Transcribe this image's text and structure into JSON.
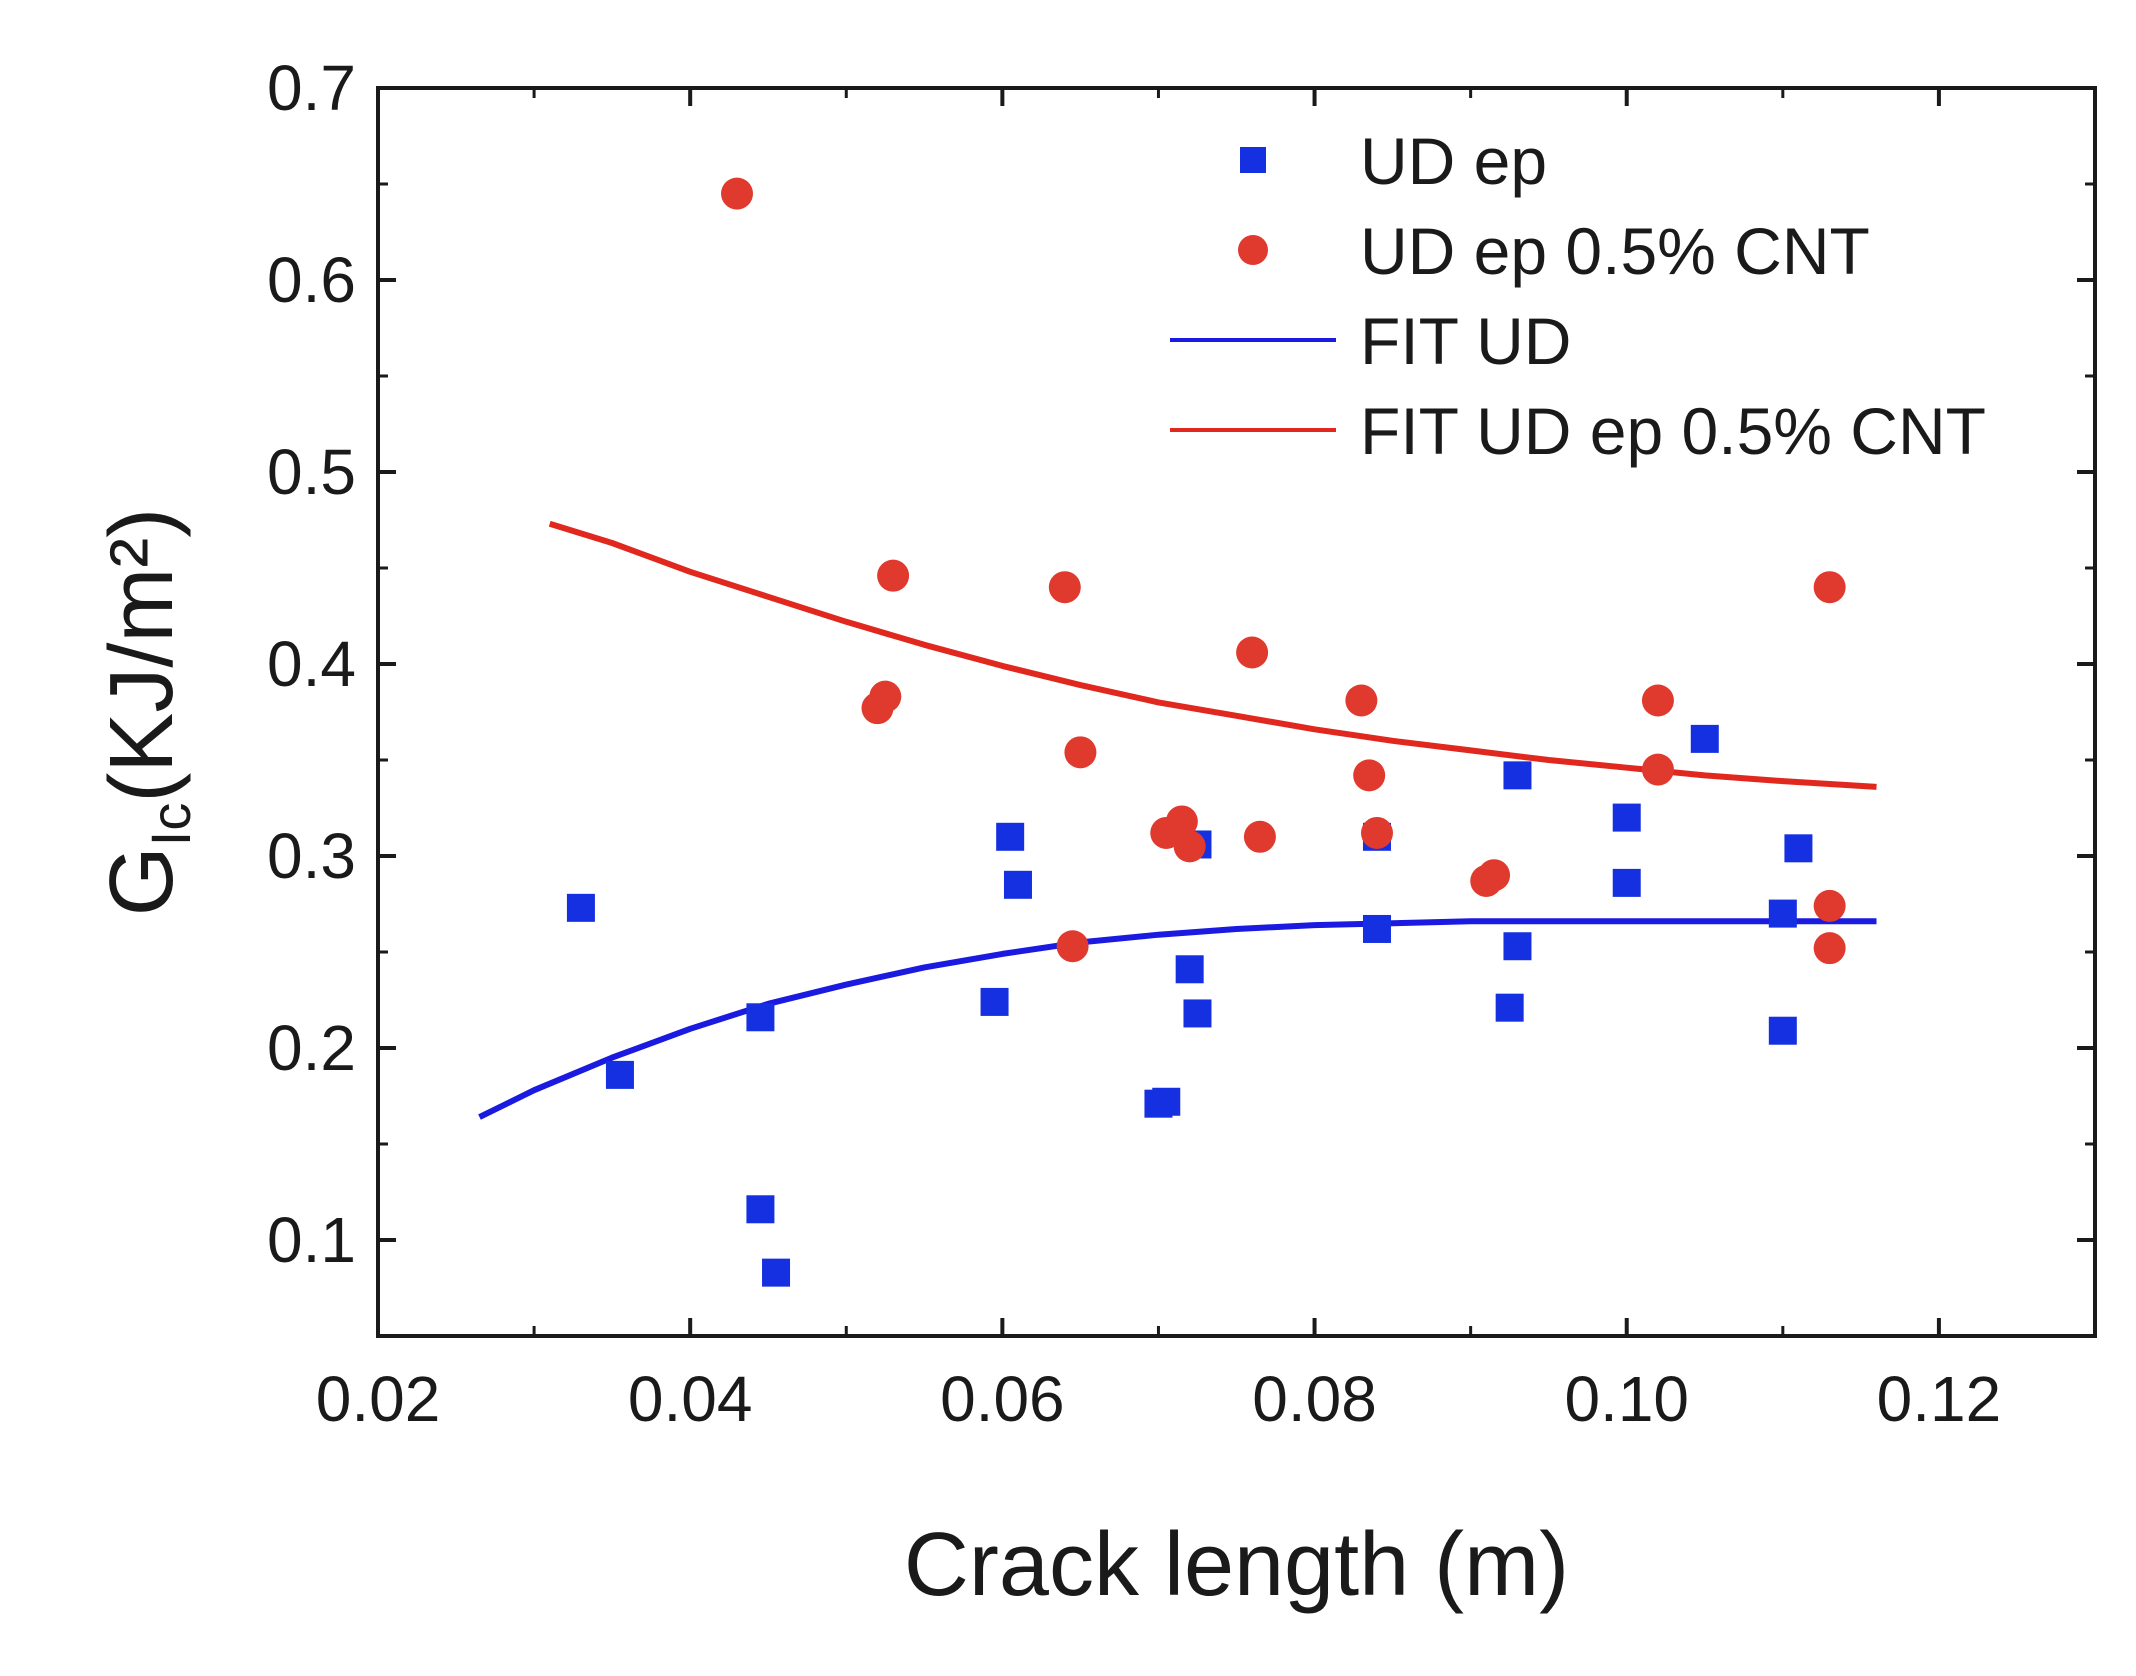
{
  "chart_data": {
    "type": "scatter",
    "title": "",
    "xlabel": "Crack length (m)",
    "ylabel": {
      "main": "G",
      "sub": "Ic",
      "rest": "(KJ/m²)"
    },
    "xlim": [
      0.02,
      0.13
    ],
    "ylim": [
      0.05,
      0.7
    ],
    "x_ticks": [
      0.02,
      0.04,
      0.06,
      0.08,
      0.1,
      0.12
    ],
    "x_tick_labels": [
      "0.02",
      "0.04",
      "0.06",
      "0.08",
      "0.10",
      "0.12"
    ],
    "y_ticks": [
      0.1,
      0.2,
      0.3,
      0.4,
      0.5,
      0.6,
      0.7
    ],
    "y_tick_labels": [
      "0.1",
      "0.2",
      "0.3",
      "0.4",
      "0.5",
      "0.6",
      "0.7"
    ],
    "legend_position": "top-right",
    "series": [
      {
        "name": "UD ep",
        "kind": "scatter",
        "marker": "square",
        "color": "#1530e0",
        "points": [
          [
            0.033,
            0.273
          ],
          [
            0.0355,
            0.186
          ],
          [
            0.0445,
            0.216
          ],
          [
            0.0445,
            0.116
          ],
          [
            0.0455,
            0.083
          ],
          [
            0.0595,
            0.224
          ],
          [
            0.0605,
            0.31
          ],
          [
            0.061,
            0.285
          ],
          [
            0.07,
            0.171
          ],
          [
            0.0705,
            0.172
          ],
          [
            0.072,
            0.241
          ],
          [
            0.0725,
            0.218
          ],
          [
            0.0725,
            0.306
          ],
          [
            0.084,
            0.262
          ],
          [
            0.084,
            0.31
          ],
          [
            0.0925,
            0.221
          ],
          [
            0.093,
            0.253
          ],
          [
            0.093,
            0.342
          ],
          [
            0.1,
            0.286
          ],
          [
            0.1,
            0.32
          ],
          [
            0.105,
            0.361
          ],
          [
            0.11,
            0.209
          ],
          [
            0.11,
            0.27
          ],
          [
            0.111,
            0.304
          ]
        ]
      },
      {
        "name": "UD ep 0.5% CNT",
        "kind": "scatter",
        "marker": "circle",
        "color": "#e03a2e",
        "points": [
          [
            0.043,
            0.645
          ],
          [
            0.052,
            0.377
          ],
          [
            0.0525,
            0.383
          ],
          [
            0.053,
            0.446
          ],
          [
            0.064,
            0.44
          ],
          [
            0.0645,
            0.253
          ],
          [
            0.065,
            0.354
          ],
          [
            0.0705,
            0.312
          ],
          [
            0.0715,
            0.318
          ],
          [
            0.072,
            0.305
          ],
          [
            0.076,
            0.406
          ],
          [
            0.0765,
            0.31
          ],
          [
            0.083,
            0.381
          ],
          [
            0.0835,
            0.342
          ],
          [
            0.084,
            0.312
          ],
          [
            0.091,
            0.287
          ],
          [
            0.0915,
            0.29
          ],
          [
            0.102,
            0.381
          ],
          [
            0.102,
            0.345
          ],
          [
            0.113,
            0.44
          ],
          [
            0.113,
            0.274
          ],
          [
            0.113,
            0.252
          ]
        ]
      },
      {
        "name": "FIT UD",
        "kind": "line",
        "color": "#1a1ae0",
        "points": [
          [
            0.0265,
            0.164
          ],
          [
            0.03,
            0.178
          ],
          [
            0.035,
            0.195
          ],
          [
            0.04,
            0.21
          ],
          [
            0.045,
            0.223
          ],
          [
            0.05,
            0.233
          ],
          [
            0.055,
            0.242
          ],
          [
            0.06,
            0.249
          ],
          [
            0.065,
            0.255
          ],
          [
            0.07,
            0.259
          ],
          [
            0.075,
            0.262
          ],
          [
            0.08,
            0.264
          ],
          [
            0.085,
            0.265
          ],
          [
            0.09,
            0.266
          ],
          [
            0.095,
            0.266
          ],
          [
            0.1,
            0.266
          ],
          [
            0.105,
            0.266
          ],
          [
            0.11,
            0.266
          ],
          [
            0.116,
            0.266
          ]
        ]
      },
      {
        "name": "FIT UD ep 0.5% CNT",
        "kind": "line",
        "color": "#e0281e",
        "points": [
          [
            0.031,
            0.473
          ],
          [
            0.035,
            0.463
          ],
          [
            0.04,
            0.448
          ],
          [
            0.045,
            0.435
          ],
          [
            0.05,
            0.422
          ],
          [
            0.055,
            0.41
          ],
          [
            0.06,
            0.399
          ],
          [
            0.065,
            0.389
          ],
          [
            0.07,
            0.38
          ],
          [
            0.075,
            0.373
          ],
          [
            0.08,
            0.366
          ],
          [
            0.085,
            0.36
          ],
          [
            0.09,
            0.355
          ],
          [
            0.095,
            0.35
          ],
          [
            0.1,
            0.346
          ],
          [
            0.105,
            0.342
          ],
          [
            0.11,
            0.339
          ],
          [
            0.116,
            0.336
          ]
        ]
      }
    ]
  }
}
